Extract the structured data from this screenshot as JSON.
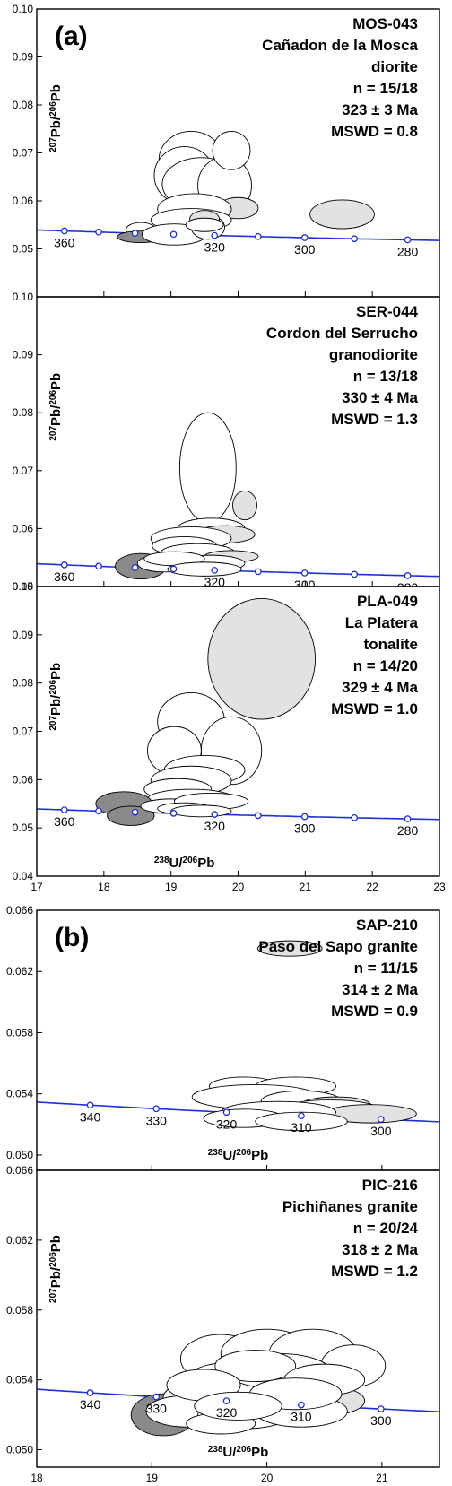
{
  "chart_data": [
    {
      "type": "scatter",
      "panel_label": "(a)",
      "sample": "MOS-043",
      "location": "Cañadon de la Mosca",
      "rock": "diorite",
      "n": "n = 15/18",
      "age": "323 ± 3 Ma",
      "mswd": "MSWD = 0.8",
      "ylabel": "207Pb/206Pb",
      "xlim": [
        17,
        23
      ],
      "ylim": [
        0.04,
        0.1
      ],
      "yticks": [
        "0.05",
        "0.06",
        "0.07",
        "0.08",
        "0.09",
        "0.10"
      ],
      "concordia_ages": [
        "360",
        "320",
        "300",
        "280"
      ],
      "ellipses": [
        {
          "x": 19.3,
          "y": 0.0685,
          "rx": 0.48,
          "ry": 0.006,
          "fill": "white"
        },
        {
          "x": 19.2,
          "y": 0.0653,
          "rx": 0.45,
          "ry": 0.006,
          "fill": "white"
        },
        {
          "x": 19.45,
          "y": 0.0635,
          "rx": 0.58,
          "ry": 0.0055,
          "fill": "white"
        },
        {
          "x": 19.8,
          "y": 0.0632,
          "rx": 0.4,
          "ry": 0.006,
          "fill": "white"
        },
        {
          "x": 19.9,
          "y": 0.0705,
          "rx": 0.28,
          "ry": 0.004,
          "fill": "white"
        },
        {
          "x": 20.0,
          "y": 0.0585,
          "rx": 0.3,
          "ry": 0.0022,
          "fill": "gray"
        },
        {
          "x": 21.55,
          "y": 0.0572,
          "rx": 0.48,
          "ry": 0.003,
          "fill": "gray"
        },
        {
          "x": 19.35,
          "y": 0.0583,
          "rx": 0.55,
          "ry": 0.0032,
          "fill": "white"
        },
        {
          "x": 19.3,
          "y": 0.056,
          "rx": 0.6,
          "ry": 0.0024,
          "fill": "white"
        },
        {
          "x": 18.55,
          "y": 0.054,
          "rx": 0.22,
          "ry": 0.0015,
          "fill": "white"
        },
        {
          "x": 18.55,
          "y": 0.0525,
          "rx": 0.35,
          "ry": 0.0012,
          "fill": "dark"
        },
        {
          "x": 19.05,
          "y": 0.053,
          "rx": 0.48,
          "ry": 0.0022,
          "fill": "white"
        },
        {
          "x": 19.55,
          "y": 0.0545,
          "rx": 0.25,
          "ry": 0.0025,
          "fill": "white"
        },
        {
          "x": 19.5,
          "y": 0.0562,
          "rx": 0.22,
          "ry": 0.0018,
          "fill": "gray"
        },
        {
          "x": 19.5,
          "y": 0.055,
          "rx": 0.28,
          "ry": 0.0014,
          "fill": "white"
        }
      ]
    },
    {
      "type": "scatter",
      "sample": "SER-044",
      "location": "Cordon del Serrucho",
      "rock": "granodiorite",
      "n": "n = 13/18",
      "age": "330 ± 4 Ma",
      "mswd": "MSWD = 1.3",
      "ylabel": "207Pb/206Pb",
      "xlim": [
        17,
        23
      ],
      "ylim": [
        0.05,
        0.1
      ],
      "yticks": [
        "0.05",
        "0.06",
        "0.07",
        "0.08",
        "0.09",
        "0.10"
      ],
      "concordia_ages": [
        "360",
        "320",
        "300",
        "280"
      ],
      "ellipses": [
        {
          "x": 19.55,
          "y": 0.0705,
          "rx": 0.42,
          "ry": 0.0095,
          "fill": "white"
        },
        {
          "x": 20.1,
          "y": 0.064,
          "rx": 0.18,
          "ry": 0.0025,
          "fill": "gray"
        },
        {
          "x": 19.6,
          "y": 0.06,
          "rx": 0.5,
          "ry": 0.0018,
          "fill": "white"
        },
        {
          "x": 19.8,
          "y": 0.059,
          "rx": 0.45,
          "ry": 0.0015,
          "fill": "gray"
        },
        {
          "x": 19.3,
          "y": 0.0583,
          "rx": 0.6,
          "ry": 0.002,
          "fill": "white"
        },
        {
          "x": 19.2,
          "y": 0.057,
          "rx": 0.48,
          "ry": 0.0016,
          "fill": "white"
        },
        {
          "x": 19.4,
          "y": 0.0558,
          "rx": 0.55,
          "ry": 0.0016,
          "fill": "white"
        },
        {
          "x": 19.9,
          "y": 0.0552,
          "rx": 0.4,
          "ry": 0.001,
          "fill": "gray"
        },
        {
          "x": 18.55,
          "y": 0.0535,
          "rx": 0.38,
          "ry": 0.0022,
          "fill": "dark"
        },
        {
          "x": 18.9,
          "y": 0.054,
          "rx": 0.4,
          "ry": 0.0015,
          "fill": "white"
        },
        {
          "x": 19.6,
          "y": 0.054,
          "rx": 0.5,
          "ry": 0.0014,
          "fill": "white"
        },
        {
          "x": 19.05,
          "y": 0.0548,
          "rx": 0.45,
          "ry": 0.0012,
          "fill": "white"
        },
        {
          "x": 19.5,
          "y": 0.053,
          "rx": 0.55,
          "ry": 0.0012,
          "fill": "white"
        }
      ]
    },
    {
      "type": "scatter",
      "sample": "PLA-049",
      "location": "La Platera",
      "rock": "tonalite",
      "n": "n = 14/20",
      "age": "329 ± 4 Ma",
      "mswd": "MSWD = 1.0",
      "ylabel": "207Pb/206Pb",
      "xlabel": "238U/206Pb",
      "xlim": [
        17,
        23
      ],
      "ylim": [
        0.04,
        0.1
      ],
      "yticks": [
        "0.04",
        "0.05",
        "0.06",
        "0.07",
        "0.08",
        "0.09",
        "0.10"
      ],
      "xticks": [
        "17",
        "18",
        "19",
        "20",
        "21",
        "22",
        "23"
      ],
      "concordia_ages": [
        "360",
        "320",
        "300",
        "280"
      ],
      "ellipses": [
        {
          "x": 20.35,
          "y": 0.085,
          "rx": 0.8,
          "ry": 0.0125,
          "fill": "gray"
        },
        {
          "x": 19.3,
          "y": 0.072,
          "rx": 0.5,
          "ry": 0.006,
          "fill": "white"
        },
        {
          "x": 19.9,
          "y": 0.066,
          "rx": 0.45,
          "ry": 0.007,
          "fill": "white"
        },
        {
          "x": 19.05,
          "y": 0.066,
          "rx": 0.4,
          "ry": 0.005,
          "fill": "white"
        },
        {
          "x": 19.5,
          "y": 0.062,
          "rx": 0.6,
          "ry": 0.003,
          "fill": "white"
        },
        {
          "x": 19.3,
          "y": 0.0598,
          "rx": 0.6,
          "ry": 0.003,
          "fill": "white"
        },
        {
          "x": 19.1,
          "y": 0.058,
          "rx": 0.5,
          "ry": 0.0022,
          "fill": "white"
        },
        {
          "x": 19.3,
          "y": 0.056,
          "rx": 0.65,
          "ry": 0.002,
          "fill": "white"
        },
        {
          "x": 18.3,
          "y": 0.055,
          "rx": 0.42,
          "ry": 0.0025,
          "fill": "dark"
        },
        {
          "x": 18.4,
          "y": 0.0525,
          "rx": 0.35,
          "ry": 0.002,
          "fill": "dark"
        },
        {
          "x": 19.0,
          "y": 0.0545,
          "rx": 0.45,
          "ry": 0.0015,
          "fill": "white"
        },
        {
          "x": 19.6,
          "y": 0.0555,
          "rx": 0.55,
          "ry": 0.0017,
          "fill": "white"
        },
        {
          "x": 19.2,
          "y": 0.054,
          "rx": 0.4,
          "ry": 0.0012,
          "fill": "white"
        },
        {
          "x": 19.45,
          "y": 0.0535,
          "rx": 0.45,
          "ry": 0.0012,
          "fill": "white"
        }
      ]
    },
    {
      "type": "scatter",
      "panel_label": "(b)",
      "sample": "SAP-210",
      "location": "Paso del Sapo granite",
      "n": "n = 11/15",
      "age": "314 ± 2 Ma",
      "mswd": "MSWD = 0.9",
      "xlabel": "238U/206Pb",
      "xlim": [
        18,
        21.5
      ],
      "ylim": [
        0.049,
        0.066
      ],
      "yticks": [
        "0.050",
        "0.054",
        "0.058",
        "0.062",
        "0.066"
      ],
      "concordia_ages": [
        "340",
        "330",
        "320",
        "310",
        "300"
      ],
      "ellipses": [
        {
          "x": 20.2,
          "y": 0.0635,
          "rx": 0.28,
          "ry": 0.0005,
          "fill": "gray"
        },
        {
          "x": 19.8,
          "y": 0.0545,
          "rx": 0.3,
          "ry": 0.0006,
          "fill": "white"
        },
        {
          "x": 20.25,
          "y": 0.0545,
          "rx": 0.35,
          "ry": 0.0006,
          "fill": "white"
        },
        {
          "x": 19.9,
          "y": 0.0538,
          "rx": 0.55,
          "ry": 0.0008,
          "fill": "white"
        },
        {
          "x": 20.3,
          "y": 0.0535,
          "rx": 0.35,
          "ry": 0.0007,
          "fill": "white"
        },
        {
          "x": 20.6,
          "y": 0.0533,
          "rx": 0.3,
          "ry": 0.0005,
          "fill": "gray"
        },
        {
          "x": 20.55,
          "y": 0.053,
          "rx": 0.42,
          "ry": 0.0006,
          "fill": "white"
        },
        {
          "x": 20.9,
          "y": 0.0527,
          "rx": 0.4,
          "ry": 0.0006,
          "fill": "gray"
        },
        {
          "x": 20.1,
          "y": 0.0528,
          "rx": 0.5,
          "ry": 0.0007,
          "fill": "white"
        },
        {
          "x": 19.8,
          "y": 0.0524,
          "rx": 0.35,
          "ry": 0.0006,
          "fill": "white"
        },
        {
          "x": 20.3,
          "y": 0.0522,
          "rx": 0.4,
          "ry": 0.0006,
          "fill": "white"
        }
      ]
    },
    {
      "type": "scatter",
      "sample": "PIC-216",
      "location": "Pichiñanes granite",
      "n": "n = 20/24",
      "age": "318 ± 2 Ma",
      "mswd": "MSWD = 1.2",
      "ylabel": "207Pb/206Pb",
      "xlabel": "238U/206Pb",
      "xlim": [
        18,
        21.5
      ],
      "ylim": [
        0.049,
        0.066
      ],
      "yticks": [
        "0.050",
        "0.054",
        "0.058",
        "0.062",
        "0.066"
      ],
      "xticks": [
        "18",
        "19",
        "20",
        "21"
      ],
      "concordia_ages": [
        "340",
        "330",
        "320",
        "310",
        "300"
      ],
      "ellipses": [
        {
          "x": 19.1,
          "y": 0.052,
          "rx": 0.28,
          "ry": 0.0012,
          "fill": "dark"
        },
        {
          "x": 19.6,
          "y": 0.0552,
          "rx": 0.35,
          "ry": 0.0014,
          "fill": "white"
        },
        {
          "x": 20.0,
          "y": 0.0555,
          "rx": 0.4,
          "ry": 0.0014,
          "fill": "white"
        },
        {
          "x": 20.4,
          "y": 0.0555,
          "rx": 0.38,
          "ry": 0.0014,
          "fill": "white"
        },
        {
          "x": 20.75,
          "y": 0.0548,
          "rx": 0.28,
          "ry": 0.0012,
          "fill": "white"
        },
        {
          "x": 19.7,
          "y": 0.054,
          "rx": 0.4,
          "ry": 0.001,
          "fill": "white"
        },
        {
          "x": 20.2,
          "y": 0.0538,
          "rx": 0.45,
          "ry": 0.001,
          "fill": "white"
        },
        {
          "x": 19.5,
          "y": 0.053,
          "rx": 0.4,
          "ry": 0.001,
          "fill": "white"
        },
        {
          "x": 20.0,
          "y": 0.053,
          "rx": 0.5,
          "ry": 0.001,
          "fill": "white"
        },
        {
          "x": 20.55,
          "y": 0.0528,
          "rx": 0.3,
          "ry": 0.0008,
          "fill": "gray"
        },
        {
          "x": 19.3,
          "y": 0.0522,
          "rx": 0.35,
          "ry": 0.0009,
          "fill": "white"
        },
        {
          "x": 19.8,
          "y": 0.052,
          "rx": 0.4,
          "ry": 0.0008,
          "fill": "white"
        },
        {
          "x": 20.3,
          "y": 0.0522,
          "rx": 0.4,
          "ry": 0.0009,
          "fill": "white"
        },
        {
          "x": 19.6,
          "y": 0.0515,
          "rx": 0.3,
          "ry": 0.0006,
          "fill": "white"
        },
        {
          "x": 20.1,
          "y": 0.0545,
          "rx": 0.45,
          "ry": 0.001,
          "fill": "white"
        },
        {
          "x": 19.9,
          "y": 0.0548,
          "rx": 0.35,
          "ry": 0.0009,
          "fill": "white"
        },
        {
          "x": 20.5,
          "y": 0.054,
          "rx": 0.35,
          "ry": 0.0009,
          "fill": "white"
        },
        {
          "x": 19.45,
          "y": 0.0537,
          "rx": 0.32,
          "ry": 0.0009,
          "fill": "white"
        },
        {
          "x": 20.25,
          "y": 0.0532,
          "rx": 0.4,
          "ry": 0.0009,
          "fill": "white"
        },
        {
          "x": 19.75,
          "y": 0.0525,
          "rx": 0.38,
          "ry": 0.0008,
          "fill": "white"
        }
      ]
    }
  ],
  "colors": {
    "concordia": "#1f2fd0",
    "fill_white": "#ffffff",
    "fill_gray": "#e2e2e2",
    "fill_dark": "#8a8a8a",
    "axis": "#000000"
  }
}
